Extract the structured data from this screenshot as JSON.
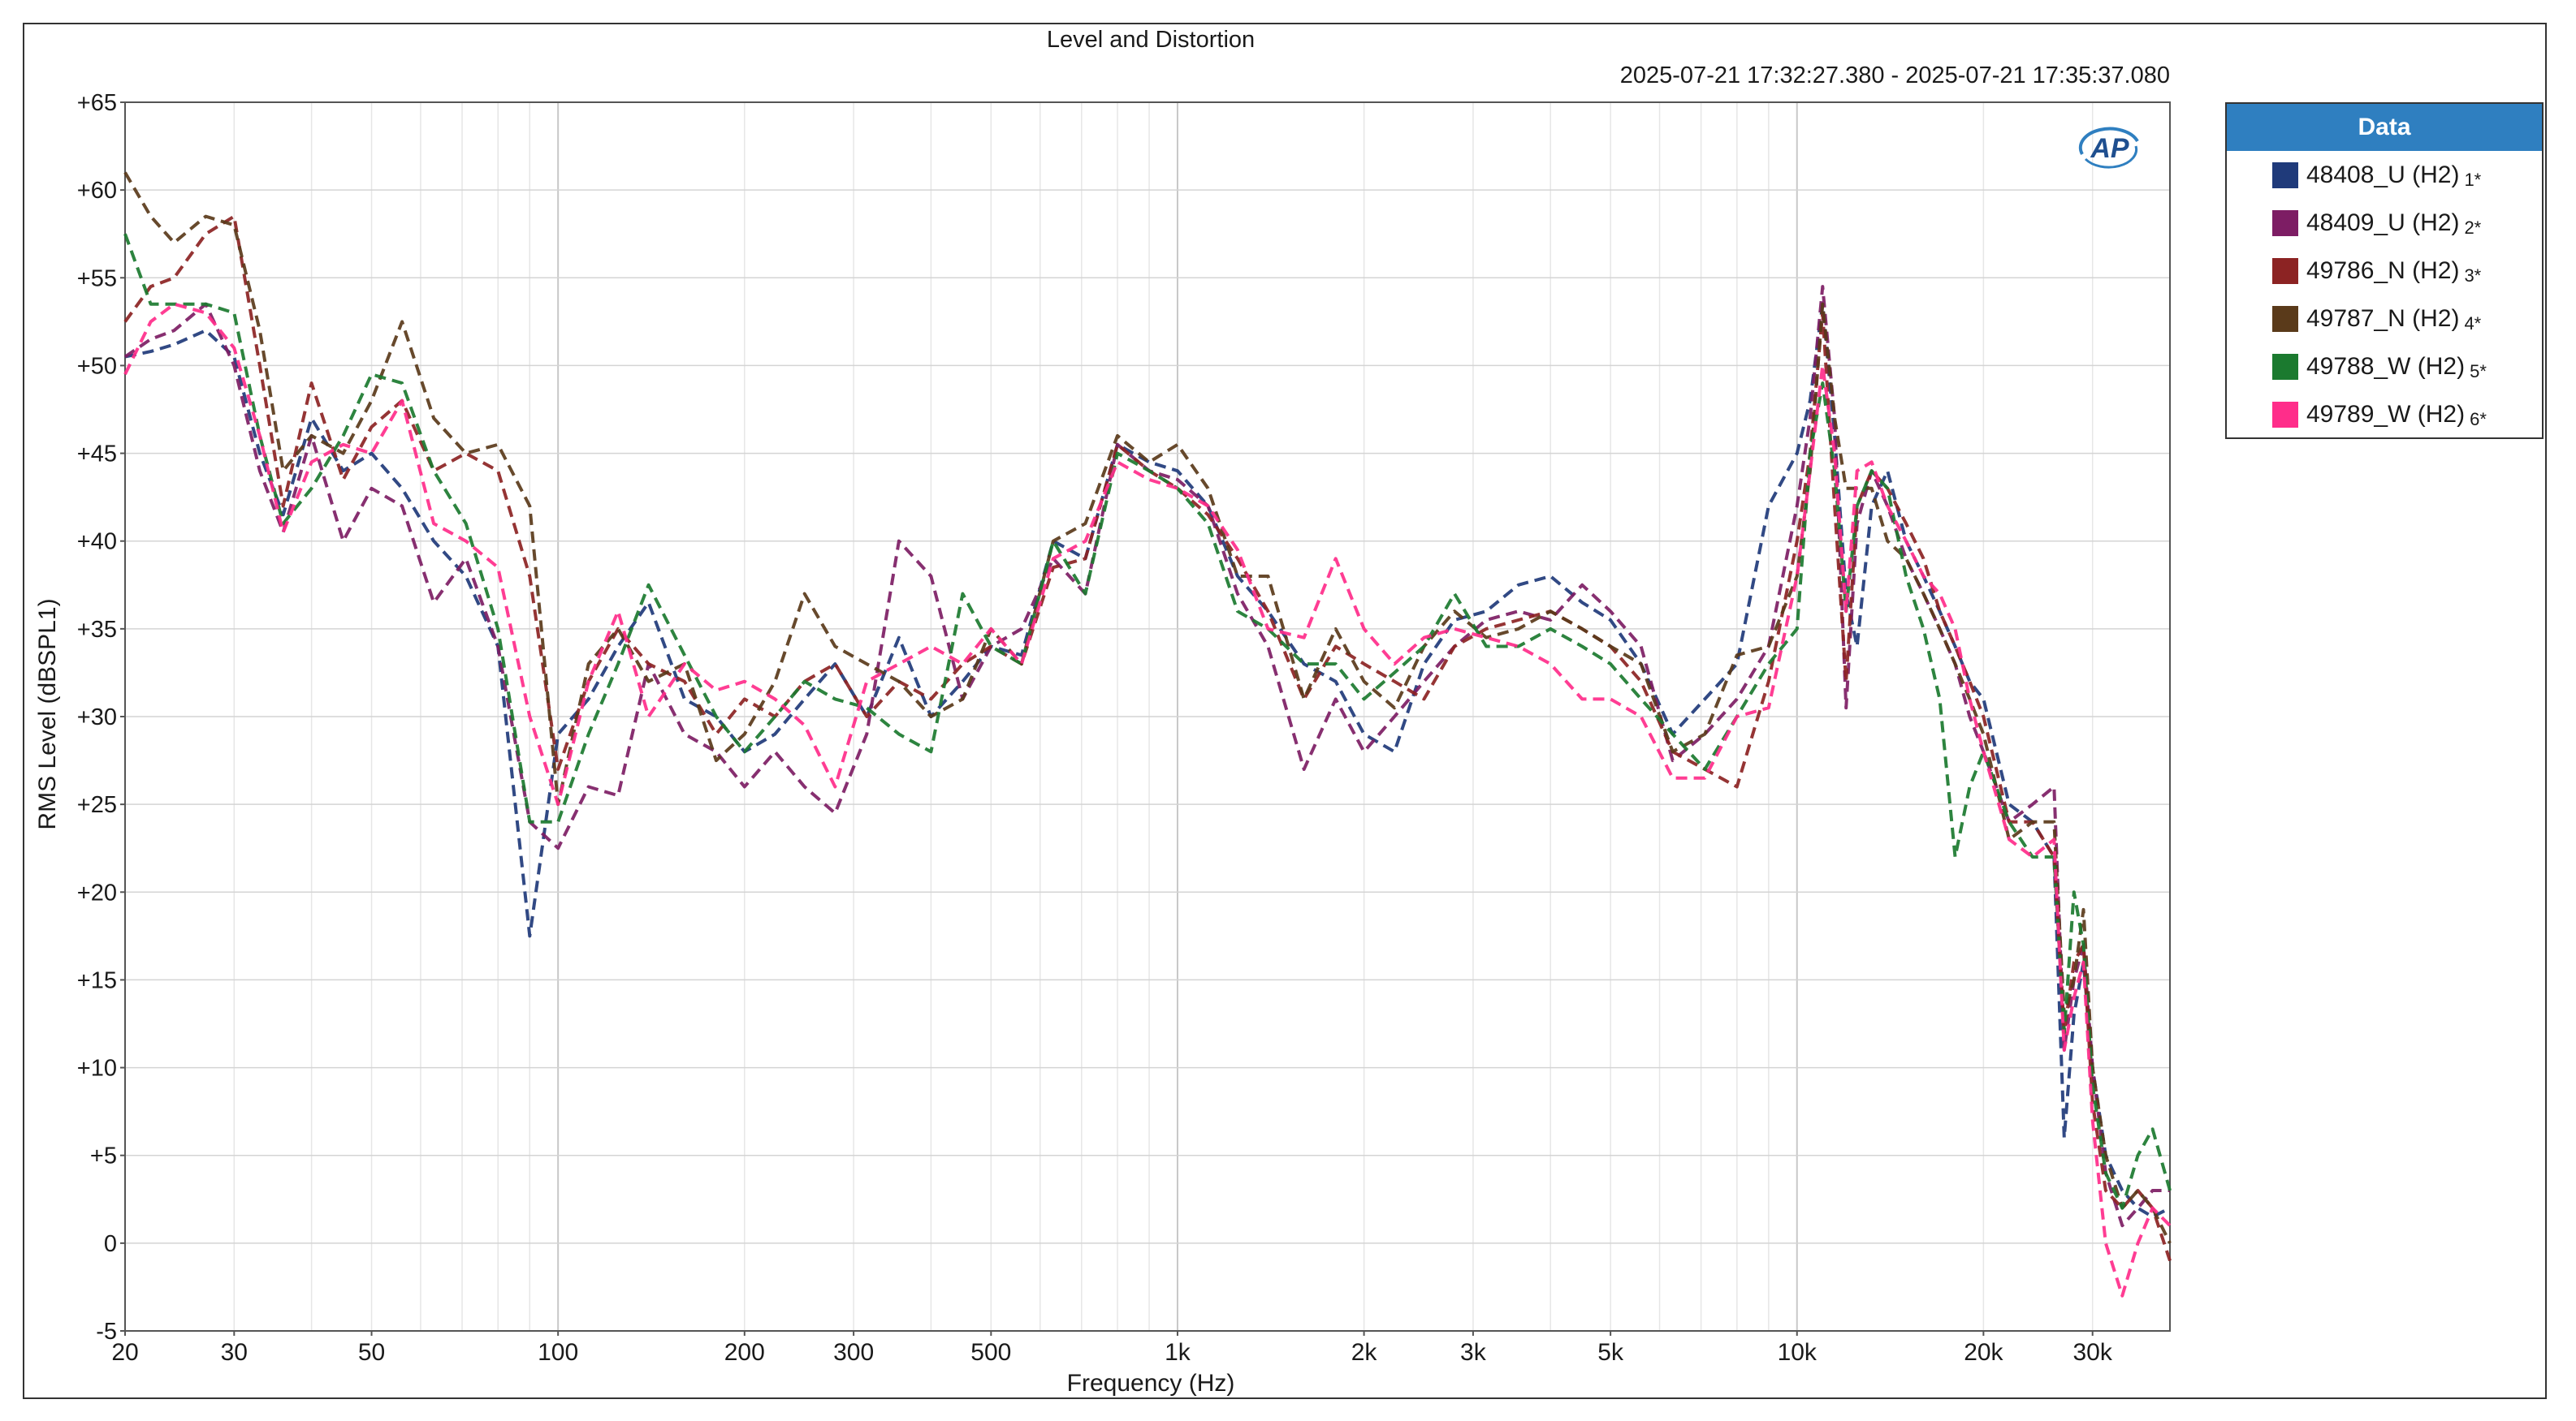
{
  "chart_data": {
    "type": "line",
    "title": "Level and Distortion",
    "subtitle": "2025-07-21 17:32:27.380 - 2025-07-21 17:35:37.080",
    "xlabel": "Frequency (Hz)",
    "ylabel": "RMS Level (dBSPL1)",
    "xscale": "log",
    "xlim": [
      20,
      40000
    ],
    "ylim": [
      -5,
      65
    ],
    "x_ticks": [
      {
        "value": 20,
        "label": "20"
      },
      {
        "value": 30,
        "label": "30"
      },
      {
        "value": 50,
        "label": "50"
      },
      {
        "value": 100,
        "label": "100"
      },
      {
        "value": 200,
        "label": "200"
      },
      {
        "value": 300,
        "label": "300"
      },
      {
        "value": 500,
        "label": "500"
      },
      {
        "value": 1000,
        "label": "1k"
      },
      {
        "value": 2000,
        "label": "2k"
      },
      {
        "value": 3000,
        "label": "3k"
      },
      {
        "value": 5000,
        "label": "5k"
      },
      {
        "value": 10000,
        "label": "10k"
      },
      {
        "value": 20000,
        "label": "20k"
      },
      {
        "value": 30000,
        "label": "30k"
      }
    ],
    "y_ticks": [
      {
        "value": 65,
        "label": "+65"
      },
      {
        "value": 60,
        "label": "+60"
      },
      {
        "value": 55,
        "label": "+55"
      },
      {
        "value": 50,
        "label": "+50"
      },
      {
        "value": 45,
        "label": "+45"
      },
      {
        "value": 40,
        "label": "+40"
      },
      {
        "value": 35,
        "label": "+35"
      },
      {
        "value": 30,
        "label": "+30"
      },
      {
        "value": 25,
        "label": "+25"
      },
      {
        "value": 20,
        "label": "+20"
      },
      {
        "value": 15,
        "label": "+15"
      },
      {
        "value": 10,
        "label": "+10"
      },
      {
        "value": 5,
        "label": "+5"
      },
      {
        "value": 0,
        "label": "0"
      },
      {
        "value": -5,
        "label": "-5"
      }
    ],
    "grid": true,
    "legend_title": "Data",
    "legend_position": "right",
    "x": [
      20,
      22,
      24,
      27,
      30,
      33,
      36,
      40,
      45,
      50,
      56,
      63,
      71,
      80,
      90,
      100,
      112,
      125,
      140,
      160,
      180,
      200,
      224,
      250,
      280,
      315,
      355,
      400,
      450,
      500,
      560,
      630,
      710,
      800,
      900,
      1000,
      1120,
      1250,
      1400,
      1600,
      1800,
      2000,
      2240,
      2500,
      2800,
      3150,
      3550,
      4000,
      4500,
      5000,
      5600,
      6300,
      7100,
      8000,
      9000,
      10000,
      10500,
      11000,
      11500,
      12000,
      12500,
      13200,
      14000,
      15000,
      16000,
      17000,
      18000,
      19000,
      20000,
      22000,
      24000,
      26000,
      27000,
      28000,
      29000,
      30000,
      31500,
      33500,
      35500,
      37500,
      40000
    ],
    "series": [
      {
        "name": "48408_U (H2)",
        "suffix": "1*",
        "color": "#1f3a7a",
        "values": [
          50.5,
          50.8,
          51.2,
          52,
          50.5,
          45,
          41.5,
          47,
          44,
          45,
          43,
          40,
          38,
          34,
          17.5,
          29,
          31,
          34,
          36.5,
          31,
          30,
          28,
          29,
          31,
          33,
          30,
          34.5,
          30,
          32,
          34,
          33.5,
          40,
          39,
          45.5,
          44.5,
          44,
          42,
          38,
          36,
          33,
          32,
          29,
          28,
          33,
          35.5,
          36,
          37.5,
          38,
          36.5,
          35.5,
          33,
          29,
          31,
          33,
          42,
          45,
          48,
          53.5,
          46,
          37,
          34,
          42,
          44,
          40,
          38,
          36,
          34,
          32,
          31,
          25,
          24,
          22,
          6,
          13,
          16,
          10,
          5,
          3,
          2,
          1.5,
          2
        ]
      },
      {
        "name": "48409_U (H2)",
        "suffix": "2*",
        "color": "#7d1d64",
        "values": [
          50.5,
          51.5,
          52,
          53.5,
          50,
          44,
          40.5,
          46,
          40,
          43,
          42,
          36.5,
          39,
          34,
          24,
          22.5,
          26,
          25.5,
          33,
          29,
          28,
          26,
          28,
          26,
          24.5,
          29,
          40,
          38,
          31,
          34,
          35,
          39,
          37,
          45.5,
          44,
          43.5,
          42,
          37,
          34,
          27,
          31,
          28,
          30,
          32,
          34,
          35.5,
          36,
          35.5,
          37.5,
          36,
          34,
          27.5,
          29,
          31,
          34,
          42,
          47,
          54.5,
          47,
          30.5,
          41,
          44,
          42,
          39,
          37,
          35,
          33,
          30,
          28,
          24,
          25,
          26,
          11,
          15,
          17,
          10,
          4,
          1,
          2,
          3,
          3
        ]
      },
      {
        "name": "49786_N (H2)",
        "suffix": "3*",
        "color": "#8c2323",
        "values": [
          52.5,
          54.5,
          55,
          57.5,
          58.5,
          50,
          42,
          49,
          43.5,
          46.5,
          48,
          44,
          45,
          44,
          38,
          27,
          32,
          35,
          33,
          32,
          29,
          31,
          30,
          32,
          33,
          30,
          32,
          31,
          33,
          34,
          33,
          38.5,
          39,
          45.5,
          44,
          43,
          41.5,
          39,
          36,
          31,
          34,
          33,
          32,
          31,
          34,
          35,
          35.5,
          36,
          35,
          34,
          32,
          28,
          27,
          26,
          32,
          40,
          45,
          53,
          42,
          32,
          42,
          44,
          43,
          41,
          39,
          36,
          34,
          32,
          30,
          24,
          24,
          22,
          12,
          16,
          17,
          8,
          3,
          2,
          3,
          2,
          -1
        ]
      },
      {
        "name": "49787_N (H2)",
        "suffix": "4*",
        "color": "#5a3a1a",
        "values": [
          61,
          58.5,
          57,
          58.5,
          58,
          52,
          44,
          46,
          45,
          48,
          52.5,
          47,
          45,
          45.5,
          42,
          25,
          33,
          35,
          32,
          33,
          27.5,
          29,
          32,
          37,
          34,
          33,
          32,
          30,
          31,
          35,
          33,
          40,
          41,
          46,
          44.5,
          45.5,
          43,
          38,
          38,
          31,
          35,
          32,
          30.5,
          34,
          36,
          34.5,
          35,
          36,
          35,
          34,
          33,
          28,
          29,
          33.5,
          34,
          38,
          44,
          53.5,
          47,
          43,
          43,
          43,
          40,
          39,
          37,
          35,
          33,
          31,
          29,
          23,
          24,
          24,
          13,
          15,
          19,
          10,
          5,
          2,
          3,
          2,
          0
        ]
      },
      {
        "name": "49788_W (H2)",
        "suffix": "5*",
        "color": "#1b7a2f",
        "values": [
          57.5,
          53.5,
          53.5,
          53.5,
          53,
          46,
          41,
          43,
          46,
          49.5,
          49,
          44,
          41,
          35,
          24,
          24,
          29,
          33,
          37.5,
          33.5,
          30,
          28,
          30,
          32,
          31,
          30.5,
          29,
          28,
          37,
          34,
          33,
          40,
          37,
          45,
          44,
          43,
          41,
          36,
          35,
          33,
          33,
          31,
          32.5,
          34,
          37,
          34,
          34,
          35,
          34,
          33,
          31,
          29,
          27,
          30,
          33,
          35,
          45,
          49,
          44,
          36,
          42,
          44,
          43,
          38,
          35,
          31,
          22,
          26,
          28,
          24,
          22,
          22,
          12,
          20,
          17,
          9,
          4,
          2,
          5,
          6.5,
          3
        ]
      },
      {
        "name": "49789_W (H2)",
        "suffix": "6*",
        "color": "#ff2d8a",
        "values": [
          49.5,
          52.5,
          53.5,
          53,
          51,
          46,
          40.5,
          44.5,
          45.5,
          45,
          48,
          41,
          40,
          38.5,
          30,
          25,
          32,
          36,
          30,
          33,
          31.5,
          32,
          31,
          29.5,
          26,
          32,
          33,
          34,
          33,
          35,
          33,
          39,
          40,
          44.5,
          43.5,
          43,
          42,
          39.5,
          35,
          34.5,
          39,
          35,
          33,
          34.5,
          35,
          34.5,
          34,
          33,
          31,
          31,
          30,
          26.5,
          26.5,
          30,
          30.5,
          38,
          44,
          50,
          45,
          36,
          44,
          44.5,
          42,
          40,
          38,
          37,
          35,
          31,
          28,
          23,
          22,
          23,
          11,
          14,
          16,
          7,
          0,
          -3,
          0,
          2,
          1
        ]
      }
    ]
  },
  "legend": {
    "title": "Data",
    "items": [
      {
        "label": "48408_U (H2)",
        "suffix": "1*",
        "color": "#1f3a7a"
      },
      {
        "label": "48409_U (H2)",
        "suffix": "2*",
        "color": "#7d1d64"
      },
      {
        "label": "49786_N (H2)",
        "suffix": "3*",
        "color": "#8c2323"
      },
      {
        "label": "49787_N (H2)",
        "suffix": "4*",
        "color": "#5a3a1a"
      },
      {
        "label": "49788_W (H2)",
        "suffix": "5*",
        "color": "#1b7a2f"
      },
      {
        "label": "49789_W (H2)",
        "suffix": "6*",
        "color": "#ff2d8a"
      }
    ]
  },
  "logo": {
    "text": "AP",
    "icon": "ap-logo-icon"
  }
}
